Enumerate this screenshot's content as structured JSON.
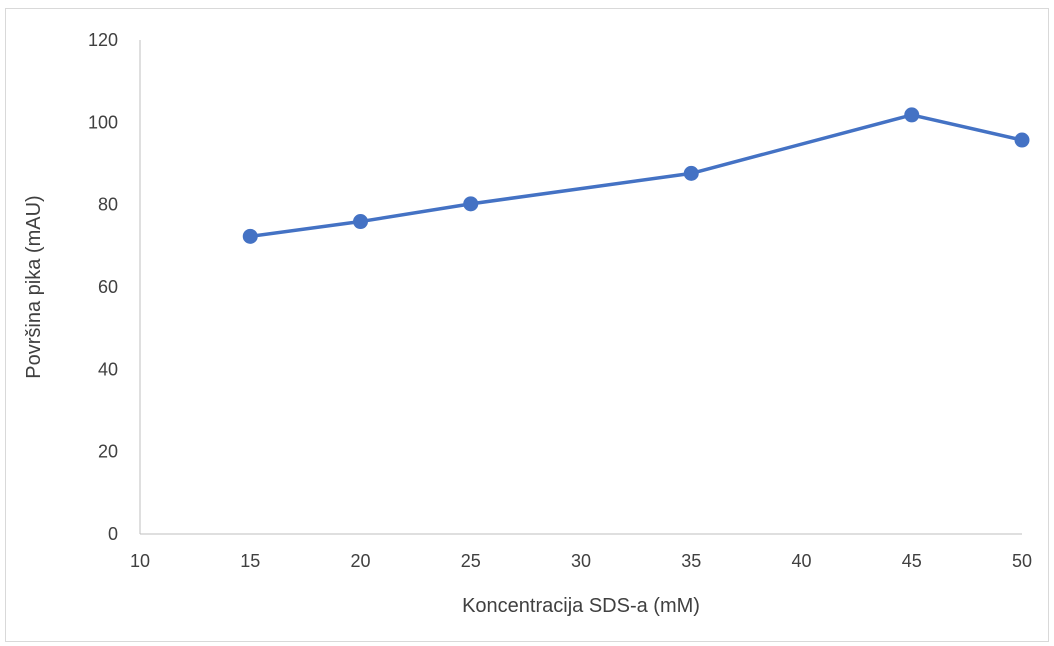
{
  "chart_data": {
    "type": "line",
    "title": "",
    "xlabel": "Koncentracija SDS-a (mM)",
    "ylabel": "Površina pika (mAU)",
    "xlim": [
      10,
      50
    ],
    "ylim": [
      0,
      120
    ],
    "x_ticks": [
      10,
      15,
      20,
      25,
      30,
      35,
      40,
      45,
      50
    ],
    "y_ticks": [
      0,
      20,
      40,
      60,
      80,
      100,
      120
    ],
    "grid": false,
    "legend": "none",
    "series": [
      {
        "color": "#4472c4",
        "marker": "circle",
        "x": [
          15,
          20,
          25,
          35,
          45,
          50
        ],
        "y": [
          72.3,
          75.9,
          80.2,
          87.6,
          101.8,
          95.7
        ]
      }
    ]
  }
}
